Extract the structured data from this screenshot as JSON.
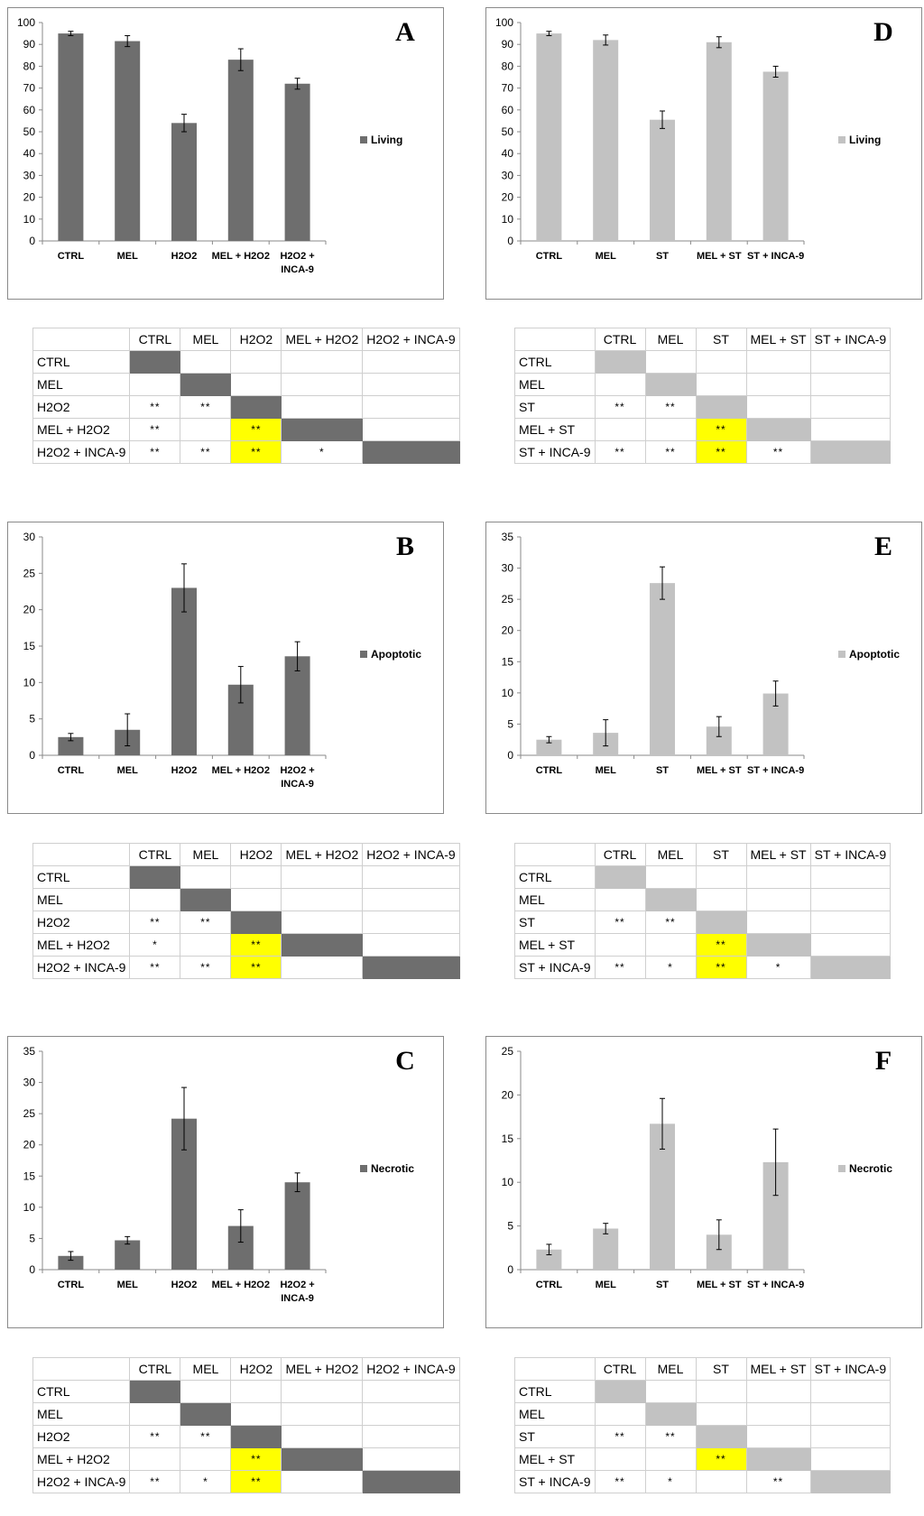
{
  "chart_data": [
    {
      "id": "A",
      "type": "bar",
      "panel_label": "A",
      "legend": "Living",
      "color": "#6e6e6e",
      "ylim": [
        0,
        100
      ],
      "ystep": 10,
      "categories": [
        "CTRL",
        "MEL",
        "H2O2",
        "MEL + H2O2",
        "H2O2 + INCA-9"
      ],
      "category_labels": [
        [
          "CTRL"
        ],
        [
          "MEL"
        ],
        [
          "H2O2"
        ],
        [
          "MEL + H2O2"
        ],
        [
          "H2O2 +",
          "INCA-9"
        ]
      ],
      "values": [
        95,
        91.5,
        54,
        83,
        72
      ],
      "errors": [
        1,
        2.5,
        4,
        5,
        2.5
      ]
    },
    {
      "id": "B",
      "type": "bar",
      "panel_label": "B",
      "legend": "Apoptotic",
      "color": "#6e6e6e",
      "ylim": [
        0,
        30
      ],
      "ystep": 5,
      "categories": [
        "CTRL",
        "MEL",
        "H2O2",
        "MEL + H2O2",
        "H2O2 + INCA-9"
      ],
      "category_labels": [
        [
          "CTRL"
        ],
        [
          "MEL"
        ],
        [
          "H2O2"
        ],
        [
          "MEL + H2O2"
        ],
        [
          "H2O2 +",
          "INCA-9"
        ]
      ],
      "values": [
        2.5,
        3.5,
        23,
        9.7,
        13.6
      ],
      "errors": [
        0.5,
        2.2,
        3.3,
        2.5,
        2
      ]
    },
    {
      "id": "C",
      "type": "bar",
      "panel_label": "C",
      "legend": "Necrotic",
      "color": "#6e6e6e",
      "ylim": [
        0,
        35
      ],
      "ystep": 5,
      "categories": [
        "CTRL",
        "MEL",
        "H2O2",
        "MEL + H2O2",
        "H2O2 + INCA-9"
      ],
      "category_labels": [
        [
          "CTRL"
        ],
        [
          "MEL"
        ],
        [
          "H2O2"
        ],
        [
          "MEL + H2O2"
        ],
        [
          "H2O2 +",
          "INCA-9"
        ]
      ],
      "values": [
        2.2,
        4.7,
        24.2,
        7,
        14
      ],
      "errors": [
        0.7,
        0.6,
        5,
        2.6,
        1.5
      ]
    },
    {
      "id": "D",
      "type": "bar",
      "panel_label": "D",
      "legend": "Living",
      "color": "#c2c2c2",
      "ylim": [
        0,
        100
      ],
      "ystep": 10,
      "categories": [
        "CTRL",
        "MEL",
        "ST",
        "MEL + ST",
        "ST + INCA-9"
      ],
      "category_labels": [
        [
          "CTRL"
        ],
        [
          "MEL"
        ],
        [
          "ST"
        ],
        [
          "MEL + ST"
        ],
        [
          "ST + INCA-9"
        ]
      ],
      "values": [
        95,
        92,
        55.5,
        91,
        77.5
      ],
      "errors": [
        1,
        2.3,
        4,
        2.5,
        2.5
      ]
    },
    {
      "id": "E",
      "type": "bar",
      "panel_label": "E",
      "legend": "Apoptotic",
      "color": "#c2c2c2",
      "ylim": [
        0,
        35
      ],
      "ystep": 5,
      "categories": [
        "CTRL",
        "MEL",
        "ST",
        "MEL + ST",
        "ST + INCA-9"
      ],
      "category_labels": [
        [
          "CTRL"
        ],
        [
          "MEL"
        ],
        [
          "ST"
        ],
        [
          "MEL + ST"
        ],
        [
          "ST + INCA-9"
        ]
      ],
      "values": [
        2.5,
        3.6,
        27.6,
        4.6,
        9.9
      ],
      "errors": [
        0.5,
        2.1,
        2.6,
        1.6,
        2
      ]
    },
    {
      "id": "F",
      "type": "bar",
      "panel_label": "F",
      "legend": "Necrotic",
      "color": "#c2c2c2",
      "ylim": [
        0,
        25
      ],
      "ystep": 5,
      "categories": [
        "CTRL",
        "MEL",
        "ST",
        "MEL + ST",
        "ST + INCA-9"
      ],
      "category_labels": [
        [
          "CTRL"
        ],
        [
          "MEL"
        ],
        [
          "ST"
        ],
        [
          "MEL + ST"
        ],
        [
          "ST + INCA-9"
        ]
      ],
      "values": [
        2.3,
        4.7,
        16.7,
        4,
        12.3
      ],
      "errors": [
        0.6,
        0.6,
        2.9,
        1.7,
        3.8
      ]
    }
  ],
  "tables": [
    {
      "id": "A",
      "color": "#6e6e6e",
      "headers": [
        "",
        "CTRL",
        "MEL",
        "H2O2",
        "MEL + H2O2",
        "H2O2 + INCA-9"
      ],
      "rows": [
        [
          "CTRL",
          "",
          "",
          "",
          "",
          ""
        ],
        [
          "MEL",
          "",
          "",
          "",
          "",
          ""
        ],
        [
          "H2O2",
          "**",
          "**",
          "",
          "",
          ""
        ],
        [
          "MEL + H2O2",
          "**",
          "",
          "**",
          "",
          ""
        ],
        [
          "H2O2 + INCA-9",
          "**",
          "**",
          "**",
          "*",
          ""
        ]
      ]
    },
    {
      "id": "B",
      "color": "#6e6e6e",
      "headers": [
        "",
        "CTRL",
        "MEL",
        "H2O2",
        "MEL + H2O2",
        "H2O2 + INCA-9"
      ],
      "rows": [
        [
          "CTRL",
          "",
          "",
          "",
          "",
          ""
        ],
        [
          "MEL",
          "",
          "",
          "",
          "",
          ""
        ],
        [
          "H2O2",
          "**",
          "**",
          "",
          "",
          ""
        ],
        [
          "MEL + H2O2",
          "*",
          "",
          "**",
          "",
          ""
        ],
        [
          "H2O2 + INCA-9",
          "**",
          "**",
          "**",
          "",
          ""
        ]
      ]
    },
    {
      "id": "C",
      "color": "#6e6e6e",
      "headers": [
        "",
        "CTRL",
        "MEL",
        "H2O2",
        "MEL + H2O2",
        "H2O2 + INCA-9"
      ],
      "rows": [
        [
          "CTRL",
          "",
          "",
          "",
          "",
          ""
        ],
        [
          "MEL",
          "",
          "",
          "",
          "",
          ""
        ],
        [
          "H2O2",
          "**",
          "**",
          "",
          "",
          ""
        ],
        [
          "MEL + H2O2",
          "",
          "",
          "**",
          "",
          ""
        ],
        [
          "H2O2 + INCA-9",
          "**",
          "*",
          "**",
          "",
          ""
        ]
      ]
    },
    {
      "id": "D",
      "color": "#c2c2c2",
      "headers": [
        "",
        "CTRL",
        "MEL",
        "ST",
        "MEL + ST",
        "ST + INCA-9"
      ],
      "rows": [
        [
          "CTRL",
          "",
          "",
          "",
          "",
          ""
        ],
        [
          "MEL",
          "",
          "",
          "",
          "",
          ""
        ],
        [
          "ST",
          "**",
          "**",
          "",
          "",
          ""
        ],
        [
          "MEL + ST",
          "",
          "",
          "**",
          "",
          ""
        ],
        [
          "ST + INCA-9",
          "**",
          "**",
          "**",
          "**",
          ""
        ]
      ]
    },
    {
      "id": "E",
      "color": "#c2c2c2",
      "headers": [
        "",
        "CTRL",
        "MEL",
        "ST",
        "MEL + ST",
        "ST + INCA-9"
      ],
      "rows": [
        [
          "CTRL",
          "",
          "",
          "",
          "",
          ""
        ],
        [
          "MEL",
          "",
          "",
          "",
          "",
          ""
        ],
        [
          "ST",
          "**",
          "**",
          "",
          "",
          ""
        ],
        [
          "MEL + ST",
          "",
          "",
          "**",
          "",
          ""
        ],
        [
          "ST + INCA-9",
          "**",
          "*",
          "**",
          "*",
          ""
        ]
      ]
    },
    {
      "id": "F",
      "color": "#c2c2c2",
      "headers": [
        "",
        "CTRL",
        "MEL",
        "ST",
        "MEL + ST",
        "ST + INCA-9"
      ],
      "rows": [
        [
          "CTRL",
          "",
          "",
          "",
          "",
          ""
        ],
        [
          "MEL",
          "",
          "",
          "",
          "",
          ""
        ],
        [
          "ST",
          "**",
          "**",
          "",
          "",
          ""
        ],
        [
          "MEL + ST",
          "",
          "",
          "**",
          "",
          ""
        ],
        [
          "ST + INCA-9",
          "**",
          "*",
          "",
          "**",
          ""
        ]
      ]
    }
  ],
  "highlight_color": "#ffff00"
}
